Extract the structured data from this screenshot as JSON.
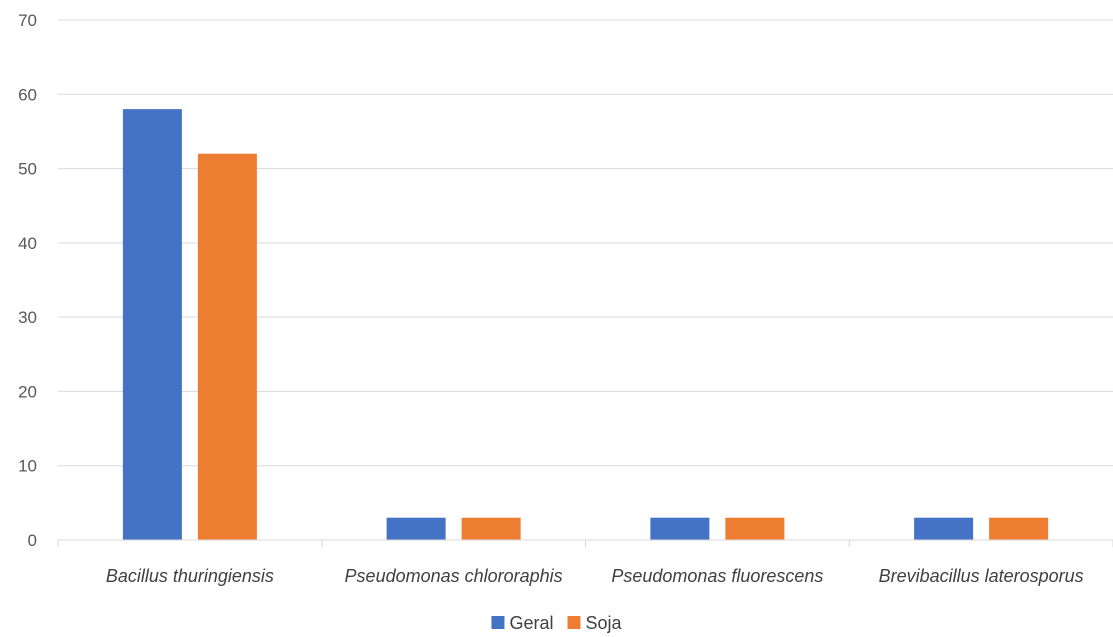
{
  "chart_data": {
    "type": "bar",
    "title": "",
    "xlabel": "",
    "ylabel": "",
    "categories": [
      "Bacillus thuringiensis",
      "Pseudomonas chlororaphis",
      "Pseudomonas fluorescens",
      "Brevibacillus laterosporus"
    ],
    "series": [
      {
        "name": "Geral",
        "values": [
          58,
          3,
          3,
          3
        ],
        "color": "#4472C4"
      },
      {
        "name": "Soja",
        "values": [
          52,
          3,
          3,
          3
        ],
        "color": "#ED7D31"
      }
    ],
    "ylim": [
      0,
      70
    ],
    "yticks": [
      0,
      10,
      20,
      30,
      40,
      50,
      60,
      70
    ],
    "grid": true,
    "legend_position": "bottom"
  }
}
